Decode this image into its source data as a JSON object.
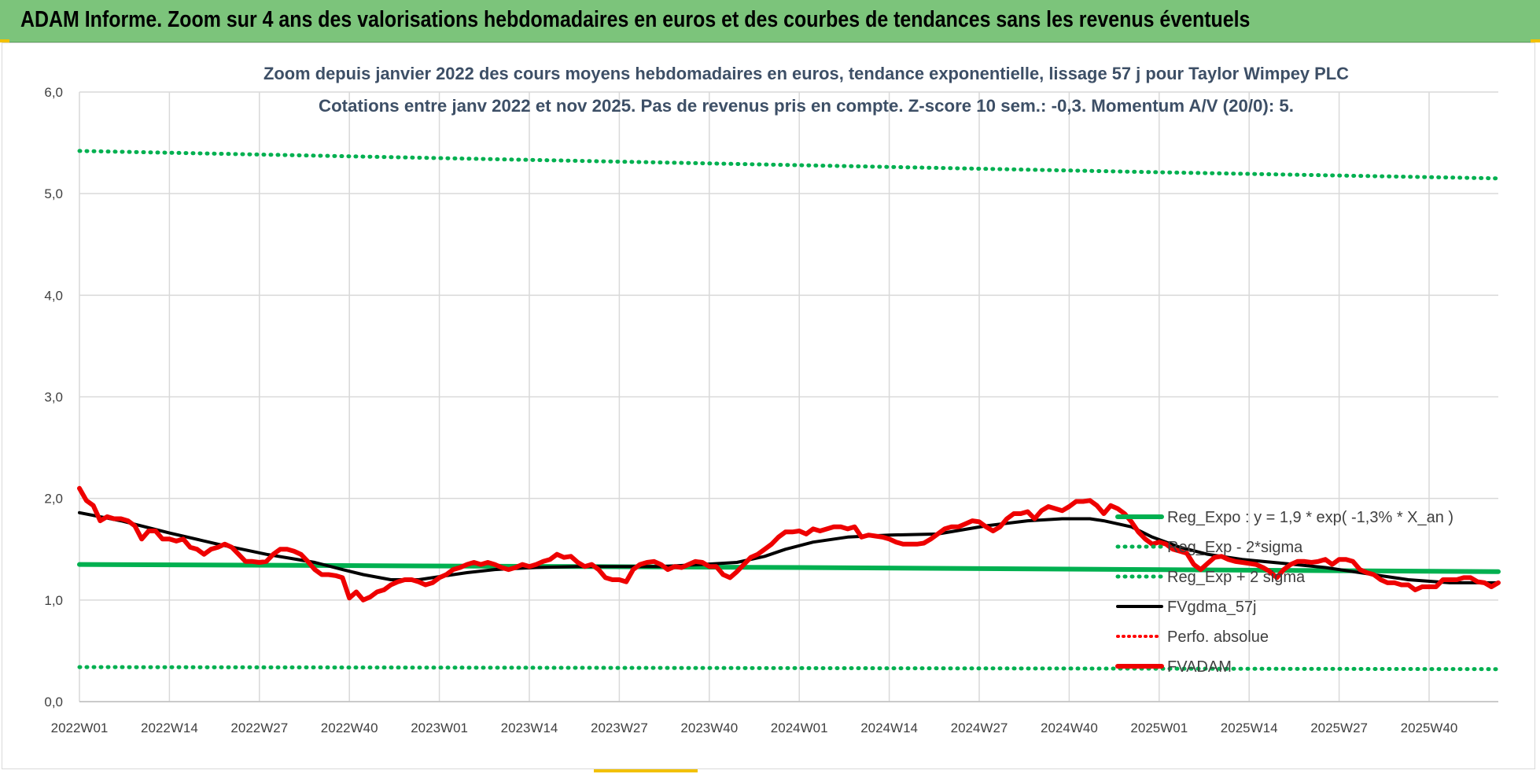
{
  "banner": {
    "title": "ADAM Informe. Zoom sur 4 ans des valorisations hebdomadaires en euros et des courbes de tendances sans les revenus éventuels"
  },
  "colors": {
    "banner_bg": "#7cc47b",
    "regression": "#00b050",
    "moving_average": "#000000",
    "price": "#ee0000",
    "perf": "#ff0000",
    "grid": "#d9d9d9",
    "title": "#3d4f66"
  },
  "chart_data": {
    "type": "line",
    "title_lines": [
      "Zoom depuis janvier 2022 des cours moyens hebdomadaires en euros, tendance exponentielle, lissage 57 j pour Taylor Wimpey PLC",
      "Cotations entre janv 2022 et nov 2025. Pas de revenus pris en compte. Z-score 10 sem.: -0,3. Momentum A/V (20/0): 5."
    ],
    "xlabel": "",
    "ylabel": "",
    "ylim": [
      0,
      6
    ],
    "y_ticks": [
      "0,0",
      "1,0",
      "2,0",
      "3,0",
      "4,0",
      "5,0",
      "6,0"
    ],
    "x_tick_labels": [
      "2022W01",
      "2022W14",
      "2022W27",
      "2022W40",
      "2023W01",
      "2023W14",
      "2023W27",
      "2023W40",
      "2024W01",
      "2024W14",
      "2024W27",
      "2024W40",
      "2025W01",
      "2025W14",
      "2025W27",
      "2025W40"
    ],
    "x_range_weeks": [
      0,
      205
    ],
    "grid": true,
    "legend_position": "right",
    "legend": [
      {
        "key": "reg_expo",
        "label": "Reg_Expo : y = 1,9 * exp( -1,3% * X_an )",
        "style": "solid-thick"
      },
      {
        "key": "reg_minus",
        "label": "Reg_Exp - 2*sigma",
        "style": "dotted"
      },
      {
        "key": "reg_plus",
        "label": "Reg_Exp + 2 sigma",
        "style": "dotted"
      },
      {
        "key": "fvgdma",
        "label": "FVgdma_57j",
        "style": "solid"
      },
      {
        "key": "perf",
        "label": "Perfo. absolue",
        "style": "dotted"
      },
      {
        "key": "fvadam",
        "label": "FVADAM",
        "style": "solid-thick"
      }
    ],
    "series": [
      {
        "key": "reg_expo",
        "name": "Reg_Expo : y = 1,9 * exp( -1,3% * X_an )",
        "points": [
          [
            0,
            1.35
          ],
          [
            104,
            1.32
          ],
          [
            205,
            1.28
          ]
        ]
      },
      {
        "key": "reg_minus",
        "name": "Reg_Exp - 2*sigma",
        "points": [
          [
            0,
            0.34
          ],
          [
            205,
            0.32
          ]
        ]
      },
      {
        "key": "reg_plus",
        "name": "Reg_Exp + 2 sigma",
        "points": [
          [
            0,
            5.42
          ],
          [
            52,
            5.35
          ],
          [
            104,
            5.28
          ],
          [
            156,
            5.21
          ],
          [
            205,
            5.15
          ]
        ]
      },
      {
        "key": "fvgdma",
        "name": "FVgdma_57j",
        "points": [
          [
            0,
            1.86
          ],
          [
            6,
            1.78
          ],
          [
            13,
            1.66
          ],
          [
            20,
            1.55
          ],
          [
            27,
            1.45
          ],
          [
            34,
            1.37
          ],
          [
            38,
            1.3
          ],
          [
            41,
            1.25
          ],
          [
            45,
            1.2
          ],
          [
            49,
            1.2
          ],
          [
            52,
            1.23
          ],
          [
            56,
            1.27
          ],
          [
            60,
            1.3
          ],
          [
            66,
            1.32
          ],
          [
            72,
            1.33
          ],
          [
            78,
            1.33
          ],
          [
            84,
            1.33
          ],
          [
            90,
            1.35
          ],
          [
            95,
            1.37
          ],
          [
            99,
            1.43
          ],
          [
            102,
            1.5
          ],
          [
            106,
            1.57
          ],
          [
            111,
            1.62
          ],
          [
            117,
            1.64
          ],
          [
            124,
            1.65
          ],
          [
            131,
            1.73
          ],
          [
            137,
            1.78
          ],
          [
            142,
            1.8
          ],
          [
            146,
            1.8
          ],
          [
            148,
            1.78
          ],
          [
            152,
            1.72
          ],
          [
            155,
            1.62
          ],
          [
            159,
            1.52
          ],
          [
            163,
            1.45
          ],
          [
            168,
            1.4
          ],
          [
            174,
            1.36
          ],
          [
            180,
            1.32
          ],
          [
            186,
            1.26
          ],
          [
            192,
            1.2
          ],
          [
            198,
            1.17
          ],
          [
            205,
            1.17
          ]
        ]
      },
      {
        "key": "fvadam",
        "name": "FVADAM",
        "points": [
          [
            0,
            2.1
          ],
          [
            1,
            1.98
          ],
          [
            2,
            1.93
          ],
          [
            3,
            1.78
          ],
          [
            4,
            1.82
          ],
          [
            5,
            1.8
          ],
          [
            6,
            1.8
          ],
          [
            7,
            1.78
          ],
          [
            8,
            1.73
          ],
          [
            9,
            1.6
          ],
          [
            10,
            1.68
          ],
          [
            11,
            1.68
          ],
          [
            12,
            1.6
          ],
          [
            13,
            1.6
          ],
          [
            14,
            1.58
          ],
          [
            15,
            1.6
          ],
          [
            16,
            1.52
          ],
          [
            17,
            1.5
          ],
          [
            18,
            1.45
          ],
          [
            19,
            1.5
          ],
          [
            20,
            1.52
          ],
          [
            21,
            1.55
          ],
          [
            22,
            1.52
          ],
          [
            23,
            1.45
          ],
          [
            24,
            1.38
          ],
          [
            25,
            1.38
          ],
          [
            26,
            1.37
          ],
          [
            27,
            1.38
          ],
          [
            28,
            1.45
          ],
          [
            29,
            1.5
          ],
          [
            30,
            1.5
          ],
          [
            31,
            1.48
          ],
          [
            32,
            1.45
          ],
          [
            33,
            1.38
          ],
          [
            34,
            1.3
          ],
          [
            35,
            1.25
          ],
          [
            36,
            1.25
          ],
          [
            37,
            1.24
          ],
          [
            38,
            1.22
          ],
          [
            39,
            1.02
          ],
          [
            40,
            1.08
          ],
          [
            41,
            1.0
          ],
          [
            42,
            1.03
          ],
          [
            43,
            1.08
          ],
          [
            44,
            1.1
          ],
          [
            45,
            1.15
          ],
          [
            46,
            1.18
          ],
          [
            47,
            1.2
          ],
          [
            48,
            1.2
          ],
          [
            49,
            1.18
          ],
          [
            50,
            1.15
          ],
          [
            51,
            1.17
          ],
          [
            52,
            1.22
          ],
          [
            53,
            1.25
          ],
          [
            54,
            1.3
          ],
          [
            55,
            1.32
          ],
          [
            56,
            1.35
          ],
          [
            57,
            1.37
          ],
          [
            58,
            1.35
          ],
          [
            59,
            1.37
          ],
          [
            60,
            1.35
          ],
          [
            61,
            1.32
          ],
          [
            62,
            1.3
          ],
          [
            63,
            1.32
          ],
          [
            64,
            1.35
          ],
          [
            65,
            1.33
          ],
          [
            66,
            1.35
          ],
          [
            67,
            1.38
          ],
          [
            68,
            1.4
          ],
          [
            69,
            1.45
          ],
          [
            70,
            1.42
          ],
          [
            71,
            1.43
          ],
          [
            72,
            1.37
          ],
          [
            73,
            1.33
          ],
          [
            74,
            1.35
          ],
          [
            75,
            1.3
          ],
          [
            76,
            1.22
          ],
          [
            77,
            1.2
          ],
          [
            78,
            1.2
          ],
          [
            79,
            1.18
          ],
          [
            80,
            1.3
          ],
          [
            81,
            1.35
          ],
          [
            82,
            1.37
          ],
          [
            83,
            1.38
          ],
          [
            84,
            1.35
          ],
          [
            85,
            1.3
          ],
          [
            86,
            1.33
          ],
          [
            87,
            1.32
          ],
          [
            88,
            1.35
          ],
          [
            89,
            1.38
          ],
          [
            90,
            1.37
          ],
          [
            91,
            1.33
          ],
          [
            92,
            1.33
          ],
          [
            93,
            1.25
          ],
          [
            94,
            1.22
          ],
          [
            95,
            1.28
          ],
          [
            96,
            1.35
          ],
          [
            97,
            1.42
          ],
          [
            98,
            1.45
          ],
          [
            99,
            1.5
          ],
          [
            100,
            1.55
          ],
          [
            101,
            1.62
          ],
          [
            102,
            1.67
          ],
          [
            103,
            1.67
          ],
          [
            104,
            1.68
          ],
          [
            105,
            1.65
          ],
          [
            106,
            1.7
          ],
          [
            107,
            1.68
          ],
          [
            108,
            1.7
          ],
          [
            109,
            1.72
          ],
          [
            110,
            1.72
          ],
          [
            111,
            1.7
          ],
          [
            112,
            1.72
          ],
          [
            113,
            1.62
          ],
          [
            114,
            1.64
          ],
          [
            115,
            1.63
          ],
          [
            116,
            1.62
          ],
          [
            117,
            1.6
          ],
          [
            118,
            1.57
          ],
          [
            119,
            1.55
          ],
          [
            120,
            1.55
          ],
          [
            121,
            1.55
          ],
          [
            122,
            1.56
          ],
          [
            123,
            1.6
          ],
          [
            124,
            1.65
          ],
          [
            125,
            1.7
          ],
          [
            126,
            1.72
          ],
          [
            127,
            1.72
          ],
          [
            128,
            1.75
          ],
          [
            129,
            1.78
          ],
          [
            130,
            1.77
          ],
          [
            131,
            1.72
          ],
          [
            132,
            1.68
          ],
          [
            133,
            1.72
          ],
          [
            134,
            1.8
          ],
          [
            135,
            1.85
          ],
          [
            136,
            1.85
          ],
          [
            137,
            1.87
          ],
          [
            138,
            1.8
          ],
          [
            139,
            1.88
          ],
          [
            140,
            1.92
          ],
          [
            141,
            1.9
          ],
          [
            142,
            1.88
          ],
          [
            143,
            1.92
          ],
          [
            144,
            1.97
          ],
          [
            145,
            1.97
          ],
          [
            146,
            1.98
          ],
          [
            147,
            1.93
          ],
          [
            148,
            1.85
          ],
          [
            149,
            1.93
          ],
          [
            150,
            1.9
          ],
          [
            151,
            1.85
          ],
          [
            152,
            1.77
          ],
          [
            153,
            1.67
          ],
          [
            154,
            1.6
          ],
          [
            155,
            1.55
          ],
          [
            156,
            1.57
          ],
          [
            157,
            1.55
          ],
          [
            158,
            1.5
          ],
          [
            159,
            1.48
          ],
          [
            160,
            1.46
          ],
          [
            161,
            1.35
          ],
          [
            162,
            1.3
          ],
          [
            163,
            1.36
          ],
          [
            164,
            1.42
          ],
          [
            165,
            1.43
          ],
          [
            166,
            1.4
          ],
          [
            167,
            1.38
          ],
          [
            168,
            1.37
          ],
          [
            169,
            1.36
          ],
          [
            170,
            1.35
          ],
          [
            171,
            1.32
          ],
          [
            172,
            1.28
          ],
          [
            173,
            1.22
          ],
          [
            174,
            1.3
          ],
          [
            175,
            1.35
          ],
          [
            176,
            1.38
          ],
          [
            177,
            1.38
          ],
          [
            178,
            1.37
          ],
          [
            179,
            1.38
          ],
          [
            180,
            1.4
          ],
          [
            181,
            1.35
          ],
          [
            182,
            1.4
          ],
          [
            183,
            1.4
          ],
          [
            184,
            1.38
          ],
          [
            185,
            1.3
          ],
          [
            186,
            1.27
          ],
          [
            187,
            1.25
          ],
          [
            188,
            1.2
          ],
          [
            189,
            1.17
          ],
          [
            190,
            1.17
          ],
          [
            191,
            1.15
          ],
          [
            192,
            1.15
          ],
          [
            193,
            1.1
          ],
          [
            194,
            1.13
          ],
          [
            195,
            1.13
          ],
          [
            196,
            1.13
          ],
          [
            197,
            1.2
          ],
          [
            198,
            1.2
          ],
          [
            199,
            1.2
          ],
          [
            200,
            1.22
          ],
          [
            201,
            1.22
          ],
          [
            202,
            1.18
          ],
          [
            203,
            1.17
          ],
          [
            204,
            1.13
          ],
          [
            205,
            1.17
          ]
        ]
      }
    ]
  }
}
